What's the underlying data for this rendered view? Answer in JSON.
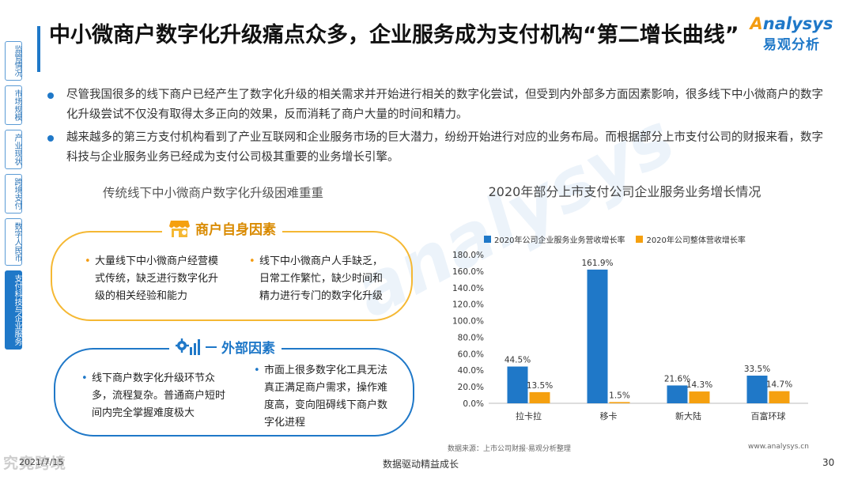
{
  "sidenav": [
    "监管情况",
    "市场规模",
    "产业现状",
    "跨境支付",
    "数字人民币",
    "支付科技与企业服务"
  ],
  "title": "中小微商户数字化升级痛点众多，企业服务成为支付机构“第二增长曲线”",
  "logo": {
    "en_a": "A",
    "en_rest": "nalysys",
    "cn": "易观分析"
  },
  "bullets": [
    "尽管我国很多的线下商户已经产生了数字化升级的相关需求并开始进行相关的数字化尝试，但受到内外部多方面因素影响，很多线下中小微商户的数字化升级尝试不仅没有取得太多正向的效果，反而消耗了商户大量的时间和精力。",
    "越来越多的第三方支付机构看到了产业互联网和企业服务市场的巨大潜力，纷纷开始进行对应的业务布局。而根据部分上市支付公司的财报来看，数字科技与企业服务业务已经成为支付公司极其重要的业务增长引擎。"
  ],
  "left_title": "传统线下中小微商户数字化升级困难重重",
  "merchant_factors": {
    "label": "商户自身因素",
    "points": [
      "大量线下中小微商户经营模式传统，缺乏进行数字化升级的相关经验和能力",
      "线下中小微商户人手缺乏，日常工作繁忙，缺少时间和精力进行专门的数字化升级"
    ]
  },
  "external_factors": {
    "label": "外部因素",
    "points": [
      "线下商户数字化升级环节众多，流程复杂。普通商户短时间内完全掌握难度极大",
      "市面上很多数字化工具无法真正满足商户需求，操作难度高，变向阻碍线下商户数字化进程"
    ]
  },
  "footer": {
    "source": "数据来源：上市公司财报·易观分析整理",
    "url": "www.analysys.cn",
    "date": "2021/7/15",
    "slogan": "数据驱动精益成长",
    "page": "30",
    "watermark": "究竟跨境"
  },
  "watermark": "analysys",
  "colors": {
    "blue": "#1f78c8",
    "orange": "#f5a00f",
    "accent": "#f5b833"
  },
  "icons": {
    "merchant": "store-icon",
    "external": "gear-chart-icon"
  },
  "chart_data": {
    "type": "bar",
    "title": "2020年部分上市支付公司企业服务业务增长情况",
    "categories": [
      "拉卡拉",
      "移卡",
      "新大陆",
      "百富环球"
    ],
    "series": [
      {
        "name": "2020年公司企业服务业务营收增长率",
        "values": [
          44.5,
          161.9,
          21.6,
          33.5
        ],
        "color": "#1f78c8"
      },
      {
        "name": "2020年公司整体营收增长率",
        "values": [
          13.5,
          1.5,
          14.3,
          14.7
        ],
        "color": "#f5a00f"
      }
    ],
    "ylim": [
      0,
      180
    ],
    "yticks": [
      0,
      20,
      40,
      60,
      80,
      100,
      120,
      140,
      160,
      180
    ],
    "ytick_labels": [
      "0.0%",
      "20.0%",
      "40.0%",
      "60.0%",
      "80.0%",
      "100.0%",
      "120.0%",
      "140.0%",
      "160.0%",
      "180.0%"
    ],
    "value_labels": [
      [
        "44.5%",
        "161.9%",
        "21.6%",
        "33.5%"
      ],
      [
        "13.5%",
        "1.5%",
        "14.3%",
        "14.7%"
      ]
    ],
    "legend": "top",
    "grid": false
  }
}
